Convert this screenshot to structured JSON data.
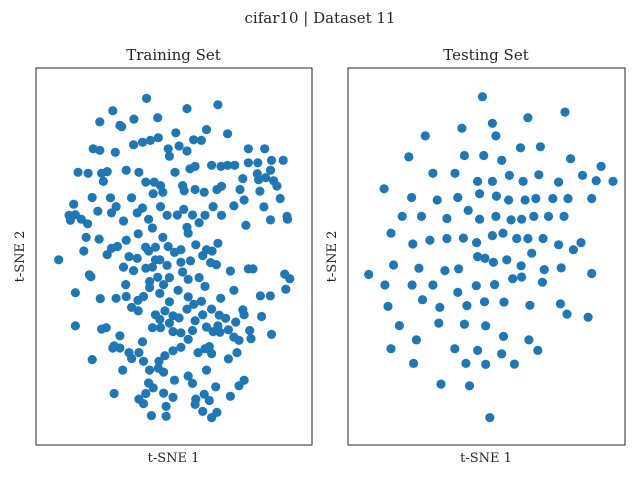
{
  "figure": {
    "suptitle": "cifar10 | Dataset 11"
  },
  "chart_data": [
    {
      "type": "scatter",
      "title": "Training Set",
      "xlabel": "t-SNE 1",
      "ylabel": "t-SNE 2",
      "xlim": [
        0,
        100
      ],
      "ylim": [
        0,
        100
      ],
      "grid": false,
      "ticks": false,
      "color": "#1f77b4",
      "points": [
        [
          39.2,
          95.3
        ],
        [
          25.9,
          91.8
        ],
        [
          43.6,
          89.8
        ],
        [
          55.1,
          92.4
        ],
        [
          67.3,
          93.5
        ],
        [
          34.2,
          89.4
        ],
        [
          20.8,
          88.6
        ],
        [
          28.7,
          87.6
        ],
        [
          29.4,
          87.2
        ],
        [
          50.7,
          85.5
        ],
        [
          43.8,
          84.1
        ],
        [
          71.1,
          85.2
        ],
        [
          62.8,
          86.4
        ],
        [
          34.1,
          82.1
        ],
        [
          57.7,
          83.5
        ],
        [
          37.6,
          82.8
        ],
        [
          40.7,
          83.3
        ],
        [
          52.0,
          81.7
        ],
        [
          18.2,
          80.9
        ],
        [
          20.8,
          80.5
        ],
        [
          26.9,
          79.9
        ],
        [
          60.8,
          83.3
        ],
        [
          47.7,
          80.9
        ],
        [
          79.3,
          80.9
        ],
        [
          48.2,
          78.8
        ],
        [
          55.1,
          80.3
        ],
        [
          64.8,
          76.2
        ],
        [
          58.3,
          75.9
        ],
        [
          71.1,
          76.2
        ],
        [
          68.5,
          75.9
        ],
        [
          56.3,
          75.2
        ],
        [
          73.9,
          76.2
        ],
        [
          79.3,
          76.9
        ],
        [
          83.0,
          76.9
        ],
        [
          85.7,
          80.9
        ],
        [
          88.4,
          77.6
        ],
        [
          93.0,
          77.6
        ],
        [
          88.0,
          74.8
        ],
        [
          83.3,
          72.1
        ],
        [
          82.8,
          73.8
        ],
        [
          86.1,
          72.7
        ],
        [
          89.2,
          71.8
        ],
        [
          90.5,
          70.3
        ],
        [
          31.2,
          74.8
        ],
        [
          23.7,
          74.4
        ],
        [
          21.5,
          73.9
        ],
        [
          36.2,
          74.2
        ],
        [
          22.2,
          71.6
        ],
        [
          12.2,
          74.2
        ],
        [
          16.2,
          73.9
        ],
        [
          38.9,
          71.4
        ],
        [
          42.2,
          71.4
        ],
        [
          41.8,
          68.1
        ],
        [
          44.7,
          70.4
        ],
        [
          45.6,
          68.5
        ],
        [
          50.4,
          74.2
        ],
        [
          53.4,
          70.4
        ],
        [
          54.0,
          68.9
        ],
        [
          58.3,
          69.3
        ],
        [
          61.9,
          68.5
        ],
        [
          66.9,
          69.3
        ],
        [
          68.7,
          70.2
        ],
        [
          76.0,
          69.3
        ],
        [
          77.1,
          72.4
        ],
        [
          77.6,
          66.3
        ],
        [
          83.8,
          68.8
        ],
        [
          91.8,
          66.7
        ],
        [
          94.5,
          61.6
        ],
        [
          94.7,
          60.8
        ],
        [
          17.8,
          67.0
        ],
        [
          10.5,
          65.1
        ],
        [
          8.7,
          61.9
        ],
        [
          9.2,
          60.5
        ],
        [
          11.2,
          62.1
        ],
        [
          13.5,
          60.8
        ],
        [
          16.0,
          59.5
        ],
        [
          20.0,
          63.1
        ],
        [
          25.0,
          66.9
        ],
        [
          25.4,
          62.6
        ],
        [
          27.2,
          64.4
        ],
        [
          33.3,
          66.9
        ],
        [
          30.1,
          60.3
        ],
        [
          35.5,
          62.6
        ],
        [
          37.6,
          64.0
        ],
        [
          40.0,
          60.8
        ],
        [
          41.5,
          58.3
        ],
        [
          44.7,
          64.4
        ],
        [
          47.3,
          61.9
        ],
        [
          51.3,
          62.0
        ],
        [
          53.8,
          63.6
        ],
        [
          55.1,
          58.5
        ],
        [
          57.3,
          62.0
        ],
        [
          59.9,
          59.8
        ],
        [
          62.2,
          61.9
        ],
        [
          65.4,
          64.4
        ],
        [
          68.7,
          61.9
        ],
        [
          73.6,
          64.6
        ],
        [
          78.3,
          59.1
        ],
        [
          85.4,
          64.3
        ],
        [
          88.0,
          60.6
        ],
        [
          15.4,
          55.6
        ],
        [
          14.5,
          51.7
        ],
        [
          20.5,
          55.1
        ],
        [
          23.7,
          50.7
        ],
        [
          25.4,
          52.5
        ],
        [
          27.7,
          53.0
        ],
        [
          31.2,
          54.8
        ],
        [
          32.3,
          50.1
        ],
        [
          35.9,
          56.6
        ],
        [
          38.8,
          52.8
        ],
        [
          35.5,
          49.6
        ],
        [
          40.0,
          51.7
        ],
        [
          42.7,
          52.8
        ],
        [
          45.6,
          55.6
        ],
        [
          47.7,
          53.0
        ],
        [
          50.2,
          51.3
        ],
        [
          52.7,
          52.1
        ],
        [
          55.6,
          56.8
        ],
        [
          58.6,
          53.5
        ],
        [
          62.8,
          52.1
        ],
        [
          65.0,
          51.7
        ],
        [
          67.3,
          53.9
        ],
        [
          44.4,
          49.2
        ],
        [
          41.5,
          47.1
        ],
        [
          47.3,
          47.6
        ],
        [
          52.7,
          48.5
        ],
        [
          56.5,
          48.9
        ],
        [
          61.3,
          50.4
        ],
        [
          64.4,
          48.4
        ],
        [
          66.7,
          47.8
        ],
        [
          4.6,
          49.2
        ],
        [
          38.9,
          46.8
        ],
        [
          34.1,
          46.1
        ],
        [
          30.1,
          47.1
        ],
        [
          31.0,
          42.1
        ],
        [
          17.3,
          44.4
        ],
        [
          16.7,
          44.9
        ],
        [
          40.4,
          43.0
        ],
        [
          43.6,
          44.2
        ],
        [
          45.9,
          42.1
        ],
        [
          48.2,
          44.1
        ],
        [
          53.4,
          45.7
        ],
        [
          55.6,
          43.6
        ],
        [
          59.9,
          44.1
        ],
        [
          62.2,
          41.6
        ],
        [
          72.2,
          46.0
        ],
        [
          79.3,
          46.6
        ],
        [
          81.1,
          46.6
        ],
        [
          93.6,
          45.1
        ],
        [
          95.6,
          43.8
        ],
        [
          94.0,
          40.8
        ],
        [
          21.0,
          38.1
        ],
        [
          11.2,
          39.8
        ],
        [
          27.2,
          38.2
        ],
        [
          31.2,
          38.7
        ],
        [
          35.8,
          37.6
        ],
        [
          38.0,
          38.7
        ],
        [
          40.4,
          41.3
        ],
        [
          44.4,
          39.6
        ],
        [
          48.2,
          37.2
        ],
        [
          51.6,
          40.5
        ],
        [
          55.6,
          38.6
        ],
        [
          57.8,
          36.5
        ],
        [
          60.8,
          37.3
        ],
        [
          68.4,
          38.2
        ],
        [
          73.6,
          40.5
        ],
        [
          77.1,
          34.9
        ],
        [
          84.0,
          38.9
        ],
        [
          87.9,
          38.9
        ],
        [
          11.2,
          30.3
        ],
        [
          33.3,
          35.6
        ],
        [
          35.9,
          34.6
        ],
        [
          42.7,
          33.5
        ],
        [
          44.4,
          32.2
        ],
        [
          46.4,
          34.6
        ],
        [
          48.2,
          31.1
        ],
        [
          49.6,
          33.2
        ],
        [
          52.0,
          32.6
        ],
        [
          55.1,
          35.1
        ],
        [
          58.3,
          31.8
        ],
        [
          61.3,
          33.5
        ],
        [
          64.8,
          35.1
        ],
        [
          67.8,
          33.4
        ],
        [
          70.3,
          32.5
        ],
        [
          74.3,
          31.4
        ],
        [
          77.6,
          33.5
        ],
        [
          79.8,
          29.0
        ],
        [
          84.5,
          33.0
        ],
        [
          21.5,
          29.4
        ],
        [
          23.3,
          29.8
        ],
        [
          28.7,
          27.5
        ],
        [
          37.6,
          25.8
        ],
        [
          41.5,
          29.8
        ],
        [
          44.7,
          29.8
        ],
        [
          49.6,
          28.7
        ],
        [
          52.7,
          28.3
        ],
        [
          55.6,
          26.5
        ],
        [
          57.3,
          29.0
        ],
        [
          62.8,
          30.0
        ],
        [
          65.4,
          28.7
        ],
        [
          67.3,
          30.3
        ],
        [
          68.1,
          28.5
        ],
        [
          71.4,
          29.2
        ],
        [
          73.6,
          27.1
        ],
        [
          75.6,
          26.2
        ],
        [
          80.3,
          26.7
        ],
        [
          88.4,
          27.9
        ],
        [
          33.3,
          21.0
        ],
        [
          28.7,
          24.0
        ],
        [
          25.9,
          24.0
        ],
        [
          26.4,
          24.6
        ],
        [
          32.3,
          22.7
        ],
        [
          36.2,
          22.7
        ],
        [
          38.0,
          20.2
        ],
        [
          44.1,
          20.2
        ],
        [
          46.4,
          21.8
        ],
        [
          49.6,
          23.2
        ],
        [
          52.7,
          24.2
        ],
        [
          59.5,
          22.7
        ],
        [
          62.2,
          23.8
        ],
        [
          63.9,
          24.4
        ],
        [
          64.8,
          22.4
        ],
        [
          71.4,
          20.9
        ],
        [
          74.8,
          22.7
        ],
        [
          17.8,
          20.7
        ],
        [
          29.8,
          17.7
        ],
        [
          40.4,
          17.7
        ],
        [
          43.8,
          18.2
        ],
        [
          45.9,
          17.1
        ],
        [
          50.2,
          14.8
        ],
        [
          55.6,
          16.0
        ],
        [
          62.8,
          17.7
        ],
        [
          57.3,
          13.9
        ],
        [
          66.4,
          12.9
        ],
        [
          75.6,
          13.2
        ],
        [
          77.6,
          14.8
        ],
        [
          40.0,
          14.0
        ],
        [
          41.8,
          12.6
        ],
        [
          38.9,
          11.0
        ],
        [
          45.9,
          11.1
        ],
        [
          49.6,
          9.9
        ],
        [
          61.9,
          10.8
        ],
        [
          63.9,
          9.0
        ],
        [
          72.2,
          10.2
        ],
        [
          38.0,
          8.1
        ],
        [
          46.9,
          7.3
        ],
        [
          58.3,
          7.9
        ],
        [
          61.3,
          5.9
        ],
        [
          66.9,
          5.6
        ],
        [
          41.1,
          4.7
        ],
        [
          64.8,
          4.1
        ],
        [
          58.6,
          9.4
        ],
        [
          46.9,
          4.5
        ],
        [
          36.2,
          9.4
        ],
        [
          26.4,
          11.0
        ],
        [
          42.7,
          49.2
        ]
      ]
    },
    {
      "type": "scatter",
      "title": "Testing Set",
      "xlabel": "t-SNE 1",
      "ylabel": "t-SNE 2",
      "xlim": [
        0,
        100
      ],
      "ylim": [
        0,
        100
      ],
      "grid": false,
      "ticks": false,
      "color": "#1f77b4",
      "points": [
        [
          48.6,
          95.8
        ],
        [
          66.5,
          89.8
        ],
        [
          81.1,
          91.4
        ],
        [
          40.5,
          86.8
        ],
        [
          52.5,
          88.2
        ],
        [
          26.1,
          84.6
        ],
        [
          53.9,
          84.6
        ],
        [
          63.6,
          81.2
        ],
        [
          71.4,
          81.5
        ],
        [
          41.5,
          79.0
        ],
        [
          49.1,
          79.0
        ],
        [
          56.2,
          77.6
        ],
        [
          83.3,
          78.1
        ],
        [
          95.3,
          75.9
        ],
        [
          19.6,
          78.6
        ],
        [
          29.1,
          73.9
        ],
        [
          37.8,
          73.9
        ],
        [
          46.7,
          71.6
        ],
        [
          52.5,
          71.6
        ],
        [
          59.2,
          73.3
        ],
        [
          64.6,
          71.6
        ],
        [
          70.8,
          73.5
        ],
        [
          78.6,
          71.4
        ],
        [
          88.0,
          73.3
        ],
        [
          100.0,
          71.6
        ],
        [
          93.4,
          71.8
        ],
        [
          9.9,
          69.5
        ],
        [
          20.7,
          67.0
        ],
        [
          30.8,
          66.3
        ],
        [
          38.9,
          67.0
        ],
        [
          47.5,
          68.1
        ],
        [
          54.1,
          67.4
        ],
        [
          58.9,
          66.3
        ],
        [
          65.4,
          66.3
        ],
        [
          69.6,
          66.7
        ],
        [
          76.3,
          66.7
        ],
        [
          82.3,
          66.7
        ],
        [
          91.6,
          66.7
        ],
        [
          17.0,
          61.6
        ],
        [
          24.6,
          61.6
        ],
        [
          34.6,
          61.0
        ],
        [
          43.0,
          63.3
        ],
        [
          47.5,
          60.8
        ],
        [
          53.9,
          61.6
        ],
        [
          59.9,
          60.6
        ],
        [
          64.0,
          60.8
        ],
        [
          68.8,
          61.6
        ],
        [
          74.6,
          61.6
        ],
        [
          80.7,
          61.6
        ],
        [
          12.6,
          56.8
        ],
        [
          21.2,
          53.7
        ],
        [
          27.9,
          54.8
        ],
        [
          34.6,
          55.3
        ],
        [
          41.1,
          55.4
        ],
        [
          46.3,
          54.1
        ],
        [
          52.5,
          56.1
        ],
        [
          56.7,
          56.8
        ],
        [
          62.1,
          55.3
        ],
        [
          66.5,
          55.3
        ],
        [
          72.5,
          55.3
        ],
        [
          78.6,
          53.5
        ],
        [
          87.4,
          54.1
        ],
        [
          13.6,
          47.7
        ],
        [
          23.6,
          46.8
        ],
        [
          33.8,
          46.1
        ],
        [
          39.2,
          46.6
        ],
        [
          46.7,
          50.1
        ],
        [
          49.6,
          49.6
        ],
        [
          52.9,
          48.5
        ],
        [
          58.2,
          49.2
        ],
        [
          63.8,
          47.5
        ],
        [
          68.0,
          51.1
        ],
        [
          72.9,
          46.4
        ],
        [
          79.6,
          46.9
        ],
        [
          84.4,
          52.1
        ],
        [
          91.6,
          45.3
        ],
        [
          3.8,
          45.0
        ],
        [
          10.2,
          42.0
        ],
        [
          20.9,
          42.0
        ],
        [
          29.1,
          42.0
        ],
        [
          38.9,
          39.9
        ],
        [
          46.2,
          41.8
        ],
        [
          53.4,
          42.1
        ],
        [
          60.5,
          43.8
        ],
        [
          64.0,
          44.3
        ],
        [
          72.2,
          42.8
        ],
        [
          11.4,
          35.9
        ],
        [
          25.0,
          37.8
        ],
        [
          31.8,
          35.6
        ],
        [
          42.5,
          36.1
        ],
        [
          49.4,
          37.2
        ],
        [
          57.1,
          37.1
        ],
        [
          67.3,
          36.2
        ],
        [
          79.3,
          36.6
        ],
        [
          81.9,
          33.7
        ],
        [
          90.2,
          32.8
        ],
        [
          15.9,
          30.4
        ],
        [
          22.6,
          26.3
        ],
        [
          31.4,
          31.1
        ],
        [
          41.5,
          30.8
        ],
        [
          49.9,
          30.3
        ],
        [
          56.9,
          27.3
        ],
        [
          66.9,
          26.3
        ],
        [
          12.6,
          23.8
        ],
        [
          37.7,
          23.8
        ],
        [
          46.7,
          23.3
        ],
        [
          56.2,
          22.3
        ],
        [
          70.4,
          23.3
        ],
        [
          21.5,
          19.6
        ],
        [
          42.1,
          19.6
        ],
        [
          49.9,
          19.3
        ],
        [
          61.2,
          19.4
        ],
        [
          32.3,
          13.7
        ],
        [
          43.5,
          13.2
        ],
        [
          51.5,
          4.1
        ]
      ]
    }
  ]
}
